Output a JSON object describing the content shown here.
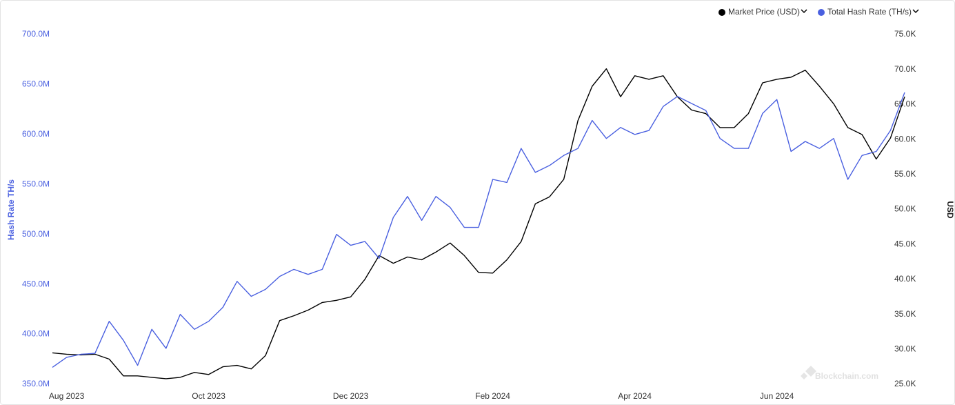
{
  "chart_data": {
    "type": "line",
    "watermark": "Blockchain.com",
    "y_label": "Hash Rate TH/s",
    "y2_label": "USD",
    "categories": [
      null,
      "Aug 2023",
      null,
      null,
      null,
      null,
      null,
      null,
      null,
      null,
      null,
      "Oct 2023",
      null,
      null,
      null,
      null,
      null,
      null,
      null,
      null,
      null,
      "Dec 2023",
      null,
      null,
      null,
      null,
      null,
      null,
      null,
      null,
      null,
      "Feb 2024",
      null,
      null,
      null,
      null,
      null,
      null,
      null,
      null,
      null,
      "Apr 2024",
      null,
      null,
      null,
      null,
      null,
      null,
      null,
      null,
      null,
      "Jun 2024",
      null,
      null,
      null,
      null,
      null,
      null,
      null,
      null,
      null
    ],
    "series": [
      {
        "name": "Market Price (USD)",
        "color": "#000000",
        "axis": "y2",
        "values": [
          29500,
          29300,
          29200,
          29300,
          28600,
          26200,
          26200,
          26000,
          25800,
          26000,
          26700,
          26400,
          27500,
          27700,
          27200,
          29100,
          34100,
          34800,
          35600,
          36700,
          37000,
          37500,
          40000,
          43400,
          42300,
          43200,
          42800,
          43900,
          45200,
          43400,
          41000,
          40900,
          42800,
          45400,
          50800,
          51800,
          54300,
          62700,
          67600,
          70100,
          66100,
          69100,
          68600,
          69100,
          66100,
          64200,
          63700,
          61700,
          61700,
          63700,
          68100,
          68600,
          68900,
          69900,
          67600,
          65100,
          61700,
          60700,
          57200,
          60200,
          66100
        ]
      },
      {
        "name": "Total Hash Rate (TH/s)",
        "color": "#4a60e0",
        "values": [
          367000000,
          377000000,
          380000000,
          381000000,
          413000000,
          394000000,
          369000000,
          405000000,
          386000000,
          420000000,
          405000000,
          413000000,
          427000000,
          453000000,
          438000000,
          445000000,
          458000000,
          465000000,
          460000000,
          465000000,
          500000000,
          489000000,
          493000000,
          476000000,
          517000000,
          538000000,
          514000000,
          538000000,
          527000000,
          507000000,
          507000000,
          555000000,
          552000000,
          586000000,
          562000000,
          569000000,
          579000000,
          586000000,
          614000000,
          596000000,
          607000000,
          600000000,
          604000000,
          628000000,
          638000000,
          631000000,
          624000000,
          596000000,
          586000000,
          586000000,
          621000000,
          635000000,
          583000000,
          593000000,
          586000000,
          596000000,
          555000000,
          579000000,
          583000000,
          604000000,
          642000000
        ]
      }
    ],
    "ylim": [
      350000000,
      700000000
    ],
    "yticks": [
      {
        "value": 350000000,
        "label": "350.0M"
      },
      {
        "value": 400000000,
        "label": "400.0M"
      },
      {
        "value": 450000000,
        "label": "450.0M"
      },
      {
        "value": 500000000,
        "label": "500.0M"
      },
      {
        "value": 550000000,
        "label": "550.0M"
      },
      {
        "value": 600000000,
        "label": "600.0M"
      },
      {
        "value": 650000000,
        "label": "650.0M"
      },
      {
        "value": 700000000,
        "label": "700.0M"
      }
    ],
    "y2lim": [
      25000,
      75000
    ],
    "y2ticks": [
      {
        "value": 25000,
        "label": "25.0K"
      },
      {
        "value": 30000,
        "label": "30.0K"
      },
      {
        "value": 35000,
        "label": "35.0K"
      },
      {
        "value": 40000,
        "label": "40.0K"
      },
      {
        "value": 45000,
        "label": "45.0K"
      },
      {
        "value": 50000,
        "label": "50.0K"
      },
      {
        "value": 55000,
        "label": "55.0K"
      },
      {
        "value": 60000,
        "label": "60.0K"
      },
      {
        "value": 65000,
        "label": "65.0K"
      },
      {
        "value": 70000,
        "label": "70.0K"
      },
      {
        "value": 75000,
        "label": "75.0K"
      }
    ],
    "grid": false,
    "legend": "top-right"
  }
}
